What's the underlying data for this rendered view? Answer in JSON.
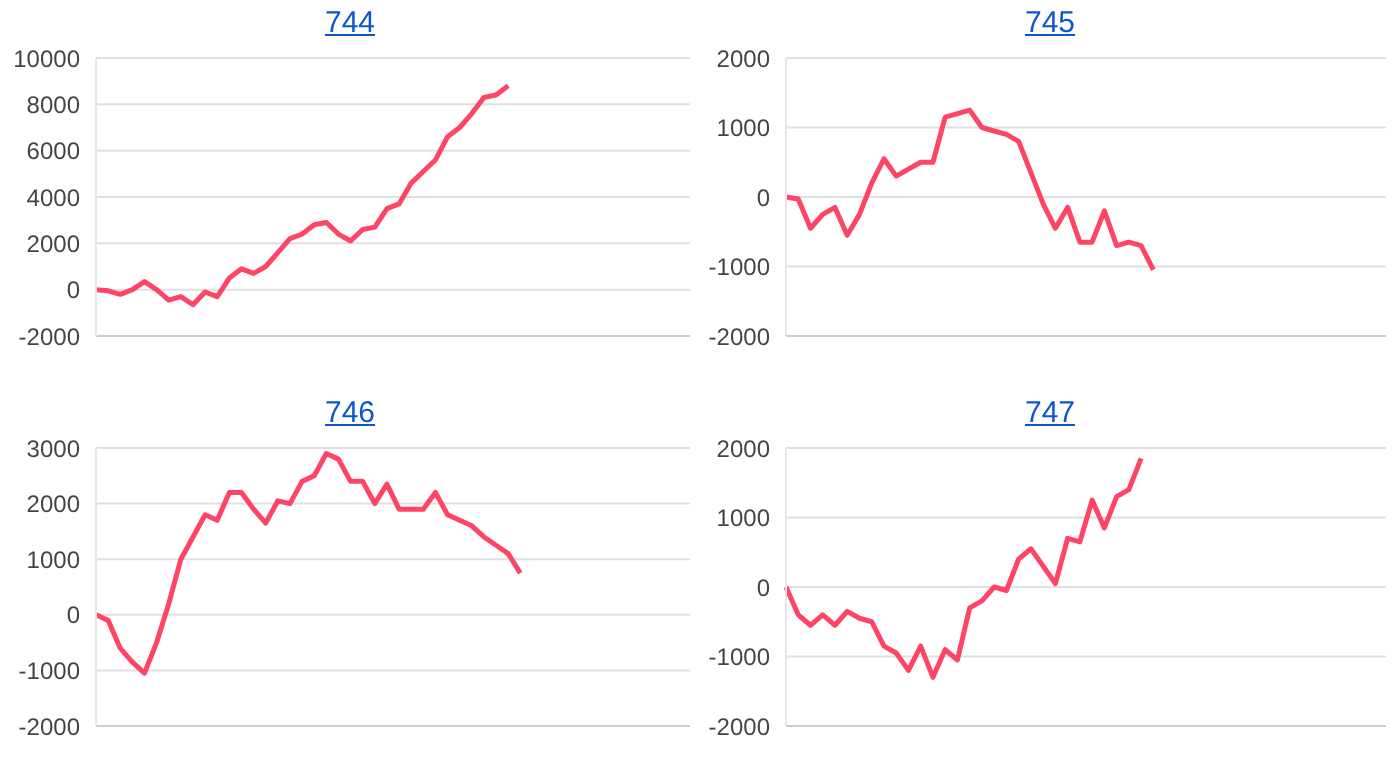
{
  "chart_data": [
    {
      "type": "line",
      "title": "744",
      "categories": [
        null,
        null,
        null,
        null,
        null,
        null,
        null,
        null,
        null,
        null,
        null,
        null,
        null,
        null,
        null,
        null,
        null,
        null,
        null,
        null,
        null,
        null,
        null,
        null,
        null,
        null,
        null,
        null,
        null,
        null,
        null,
        null,
        null,
        null,
        null,
        null,
        null,
        null,
        null,
        null,
        null,
        null,
        null,
        null,
        null,
        null,
        null,
        null,
        null,
        null
      ],
      "series": [
        {
          "color": "#ff4466",
          "values": [
            0,
            -50,
            -200,
            0,
            350,
            0,
            -450,
            -300,
            -650,
            -100,
            -300,
            500,
            900,
            700,
            1000,
            1600,
            2200,
            2400,
            2800,
            2900,
            2400,
            2100,
            2600,
            2700,
            3500,
            3700,
            4600,
            5100,
            5600,
            6600,
            7000,
            7600,
            8300,
            8400,
            8800,
            null,
            null,
            null,
            null,
            null,
            null,
            null,
            null,
            null,
            null,
            null,
            null,
            null,
            null,
            null
          ]
        }
      ],
      "ylim": [
        -2000,
        10000
      ],
      "yticks": [
        -2000,
        0,
        2000,
        4000,
        6000,
        8000,
        10000
      ],
      "grid": "y",
      "tick_labels": "y"
    },
    {
      "type": "line",
      "title": "745",
      "categories": [
        null,
        null,
        null,
        null,
        null,
        null,
        null,
        null,
        null,
        null,
        null,
        null,
        null,
        null,
        null,
        null,
        null,
        null,
        null,
        null,
        null,
        null,
        null,
        null,
        null,
        null,
        null,
        null,
        null,
        null,
        null,
        null,
        null,
        null,
        null,
        null,
        null,
        null,
        null,
        null,
        null,
        null,
        null,
        null,
        null,
        null,
        null,
        null,
        null,
        null
      ],
      "series": [
        {
          "color": "#ff4466",
          "values": [
            0,
            -30,
            -450,
            -250,
            -150,
            -550,
            -250,
            200,
            550,
            300,
            400,
            500,
            500,
            1150,
            1200,
            1250,
            1000,
            950,
            900,
            800,
            350,
            -100,
            -450,
            -150,
            -650,
            -650,
            -200,
            -700,
            -650,
            -700,
            -1050,
            null,
            null,
            null,
            null,
            null,
            null,
            null,
            null,
            null,
            null,
            null,
            null,
            null,
            null,
            null,
            null,
            null,
            null,
            null
          ]
        }
      ],
      "ylim": [
        -2000,
        2000
      ],
      "yticks": [
        -2000,
        -1000,
        0,
        1000,
        2000
      ],
      "grid": "y",
      "tick_labels": "y"
    },
    {
      "type": "line",
      "title": "746",
      "categories": [
        null,
        null,
        null,
        null,
        null,
        null,
        null,
        null,
        null,
        null,
        null,
        null,
        null,
        null,
        null,
        null,
        null,
        null,
        null,
        null,
        null,
        null,
        null,
        null,
        null,
        null,
        null,
        null,
        null,
        null,
        null,
        null,
        null,
        null,
        null,
        null,
        null,
        null,
        null,
        null,
        null,
        null,
        null,
        null,
        null,
        null,
        null,
        null,
        null,
        null
      ],
      "series": [
        {
          "color": "#ff4466",
          "values": [
            0,
            -100,
            -600,
            -850,
            -1050,
            -500,
            200,
            1000,
            1400,
            1800,
            1700,
            2200,
            2200,
            1900,
            1650,
            2050,
            2000,
            2400,
            2500,
            2900,
            2800,
            2400,
            2400,
            2000,
            2350,
            1900,
            1900,
            1900,
            2200,
            1800,
            1700,
            1600,
            1400,
            1250,
            1100,
            750,
            null,
            null,
            null,
            null,
            null,
            null,
            null,
            null,
            null,
            null,
            null,
            null,
            null,
            null
          ]
        }
      ],
      "ylim": [
        -2000,
        3000
      ],
      "yticks": [
        -2000,
        -1000,
        0,
        1000,
        2000,
        3000
      ],
      "grid": "y",
      "tick_labels": "y"
    },
    {
      "type": "line",
      "title": "747",
      "categories": [
        null,
        null,
        null,
        null,
        null,
        null,
        null,
        null,
        null,
        null,
        null,
        null,
        null,
        null,
        null,
        null,
        null,
        null,
        null,
        null,
        null,
        null,
        null,
        null,
        null,
        null,
        null,
        null,
        null,
        null,
        null,
        null,
        null,
        null,
        null,
        null,
        null,
        null,
        null,
        null,
        null,
        null,
        null,
        null,
        null,
        null,
        null,
        null,
        null,
        null
      ],
      "series": [
        {
          "color": "#ff4466",
          "values": [
            0,
            -400,
            -550,
            -400,
            -550,
            -350,
            -450,
            -500,
            -850,
            -950,
            -1200,
            -850,
            -1300,
            -900,
            -1050,
            -300,
            -200,
            0,
            -50,
            400,
            550,
            300,
            50,
            700,
            650,
            1250,
            850,
            1300,
            1400,
            1850,
            null,
            null,
            null,
            null,
            null,
            null,
            null,
            null,
            null,
            null,
            null,
            null,
            null,
            null,
            null,
            null,
            null,
            null,
            null,
            null
          ]
        }
      ],
      "ylim": [
        -2000,
        2000
      ],
      "yticks": [
        -2000,
        -1000,
        0,
        1000,
        2000
      ],
      "grid": "y",
      "tick_labels": "y"
    }
  ]
}
